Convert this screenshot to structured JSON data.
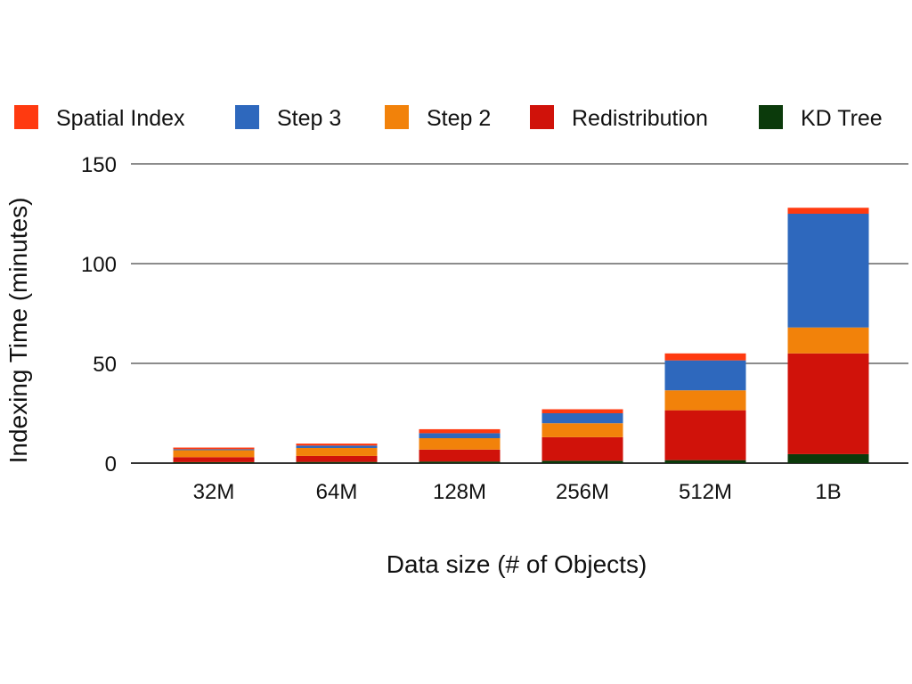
{
  "chart_data": {
    "type": "bar",
    "stacked": true,
    "title": "",
    "xlabel": "Data size (# of Objects)",
    "ylabel": "Indexing Time (minutes)",
    "ylim": [
      0,
      150
    ],
    "yticks": [
      0,
      50,
      100,
      150
    ],
    "grid": true,
    "legend_position": "top",
    "categories": [
      "32M",
      "64M",
      "128M",
      "256M",
      "512M",
      "1B"
    ],
    "series": [
      {
        "name": "KD Tree",
        "color": "#0b3a0b",
        "values": [
          0.5,
          0.6,
          0.8,
          1.2,
          1.5,
          4.5
        ]
      },
      {
        "name": "Redistribution",
        "color": "#d0120a",
        "values": [
          2.5,
          3.0,
          6.0,
          11.8,
          25.0,
          50.5
        ]
      },
      {
        "name": "Step 2",
        "color": "#f2820a",
        "values": [
          3.5,
          4.0,
          5.7,
          7.0,
          10.0,
          13.0
        ]
      },
      {
        "name": "Step 3",
        "color": "#2e68bd",
        "values": [
          0.5,
          1.2,
          2.5,
          5.0,
          15.0,
          57.0
        ]
      },
      {
        "name": "Spatial Index",
        "color": "#ff3a10",
        "values": [
          0.8,
          1.0,
          2.0,
          2.0,
          3.5,
          3.0
        ]
      }
    ],
    "legend_order": [
      "Spatial Index",
      "Step 3",
      "Step 2",
      "Redistribution",
      "KD Tree"
    ]
  }
}
